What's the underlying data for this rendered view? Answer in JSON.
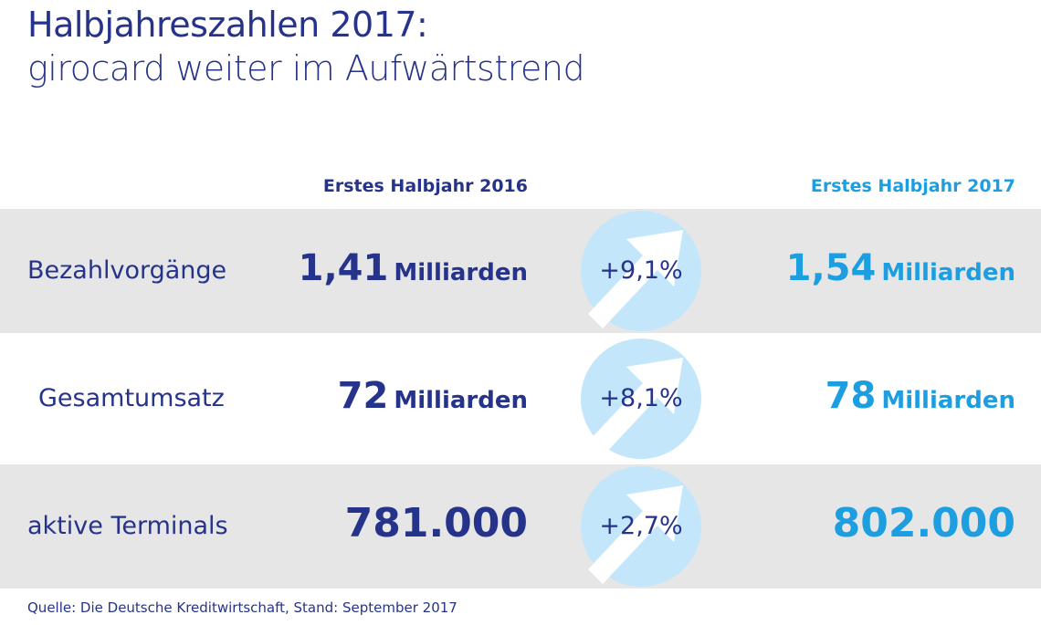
{
  "title": {
    "line1": "Halbjahreszahlen 2017:",
    "line2": "girocard weiter im Aufwärtstrend"
  },
  "columns": {
    "h1_2016": "Erstes Halbjahr 2016",
    "h1_2017": "Erstes Halbjahr 2017"
  },
  "chart_data": {
    "type": "table",
    "title": "Halbjahreszahlen 2017: girocard weiter im Aufwärtstrend",
    "columns": [
      "Erstes Halbjahr 2016",
      "Erstes Halbjahr 2017"
    ],
    "rows": [
      {
        "label": "Bezahlvorgänge",
        "value_2016": "1,41",
        "unit_2016": "Milliarden",
        "change": "+9,1%",
        "value_2017": "1,54",
        "unit_2017": "Milliarden"
      },
      {
        "label": "Gesamtumsatz",
        "value_2016": "72",
        "unit_2016": "Milliarden",
        "change": "+8,1%",
        "value_2017": "78",
        "unit_2017": "Milliarden"
      },
      {
        "label": "aktive Terminals",
        "value_2016": "781.000",
        "unit_2016": "",
        "change": "+2,7%",
        "value_2017": "802.000",
        "unit_2017": ""
      }
    ]
  },
  "source": "Quelle: Die Deutsche Kreditwirtschaft, Stand: September 2017",
  "colors": {
    "navy": "#26338a",
    "blue": "#1c9ee0",
    "light_blue": "#c3e6fa",
    "row_shade": "#e6e6e6"
  }
}
